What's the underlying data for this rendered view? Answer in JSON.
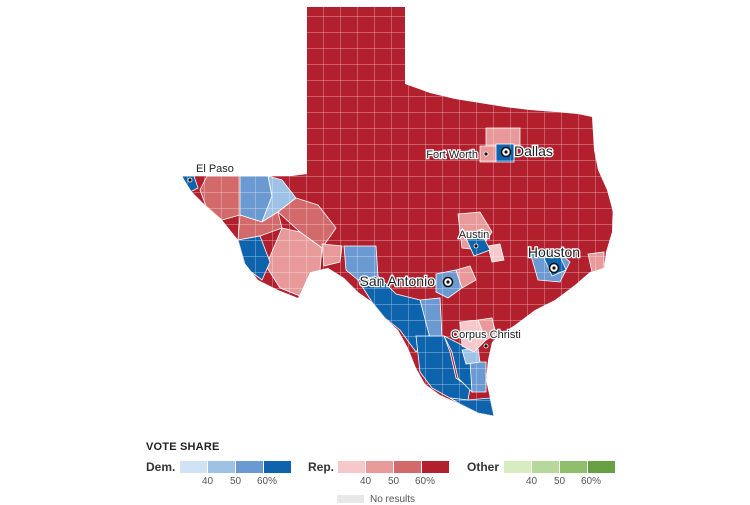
{
  "colors": {
    "dem": [
      "#cfe3f5",
      "#9ec2e6",
      "#6b9ad2",
      "#0d63ac"
    ],
    "rep": [
      "#f6c8c9",
      "#e89a9b",
      "#d26a6c",
      "#b21f2d"
    ],
    "other": [
      "#d8ecc1",
      "#b7d89b",
      "#8fbf6c",
      "#67a043"
    ],
    "no_results": "#e8e8e8",
    "border": "#ffffff"
  },
  "cities": [
    {
      "name": "El Paso",
      "size": "small"
    },
    {
      "name": "Fort Worth",
      "size": "small"
    },
    {
      "name": "Dallas",
      "size": "large"
    },
    {
      "name": "Austin",
      "size": "small"
    },
    {
      "name": "Houston",
      "size": "large"
    },
    {
      "name": "San Antonio",
      "size": "large"
    },
    {
      "name": "Corpus Christi",
      "size": "small"
    }
  ],
  "legend": {
    "title": "VOTE SHARE",
    "groups": [
      {
        "name": "Dem.",
        "ticks": [
          "40",
          "50",
          "60%"
        ]
      },
      {
        "name": "Rep.",
        "ticks": [
          "40",
          "50",
          "60%"
        ]
      },
      {
        "name": "Other",
        "ticks": [
          "40",
          "50",
          "60%"
        ]
      }
    ],
    "no_results": "No results"
  }
}
